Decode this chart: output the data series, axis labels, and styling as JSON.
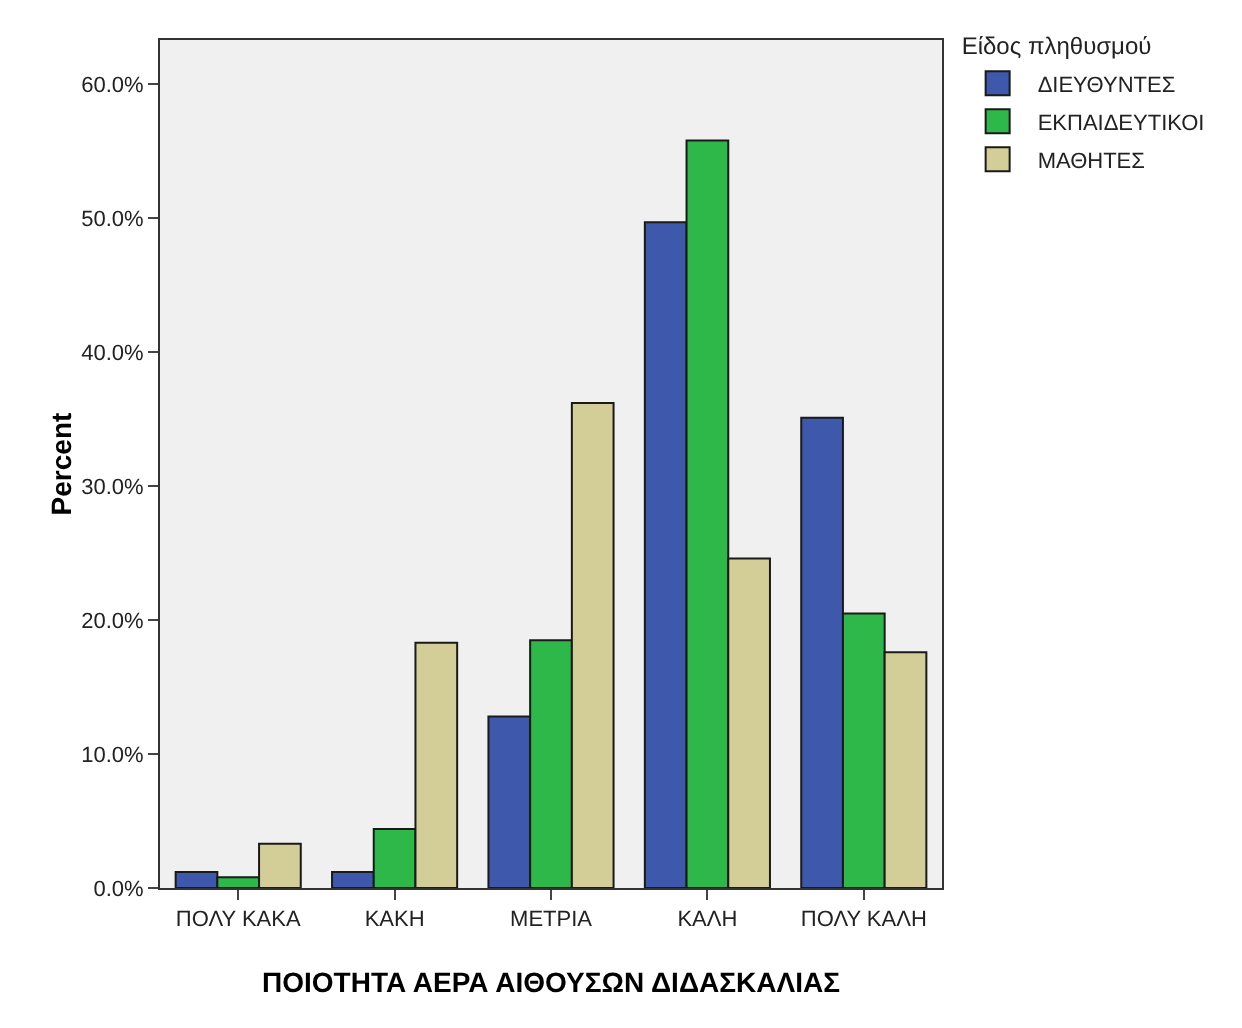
{
  "chart_data": {
    "type": "bar",
    "xlabel": "ΠΟΙΟΤΗΤΑ ΑΕΡΑ ΑΙΘΟΥΣΩΝ ΔΙΔΑΣΚΑΛΙΑΣ",
    "ylabel": "Percent",
    "legend_title": "Είδος πληθυσμού",
    "categories": [
      "ΠΟΛΥ ΚΑΚΑ",
      "ΚΑΚΗ",
      "ΜΕΤΡΙΑ",
      "ΚΑΛΗ",
      "ΠΟΛΥ ΚΑΛΗ"
    ],
    "series": [
      {
        "name": "ΔΙΕΥΘΥΝΤΕΣ",
        "color": "#3e58ac",
        "values": [
          1.2,
          1.2,
          12.8,
          49.7,
          35.1
        ]
      },
      {
        "name": "ΕΚΠΑΙΔΕΥΤΙΚΟΙ",
        "color": "#2fb84a",
        "values": [
          0.8,
          4.4,
          18.5,
          55.8,
          20.5
        ]
      },
      {
        "name": "ΜΑΘΗΤΕΣ",
        "color": "#d3ce97",
        "values": [
          3.3,
          18.3,
          36.2,
          24.6,
          17.6
        ]
      }
    ],
    "ylim": [
      0,
      63.3
    ],
    "yticks": [
      {
        "value": 0,
        "label": "0.0%"
      },
      {
        "value": 10,
        "label": "10.0%"
      },
      {
        "value": 20,
        "label": "20.0%"
      },
      {
        "value": 30,
        "label": "30.0%"
      },
      {
        "value": 40,
        "label": "40.0%"
      },
      {
        "value": 50,
        "label": "50.0%"
      },
      {
        "value": 60,
        "label": "60.0%"
      }
    ],
    "grid": false,
    "legend": "top right"
  }
}
